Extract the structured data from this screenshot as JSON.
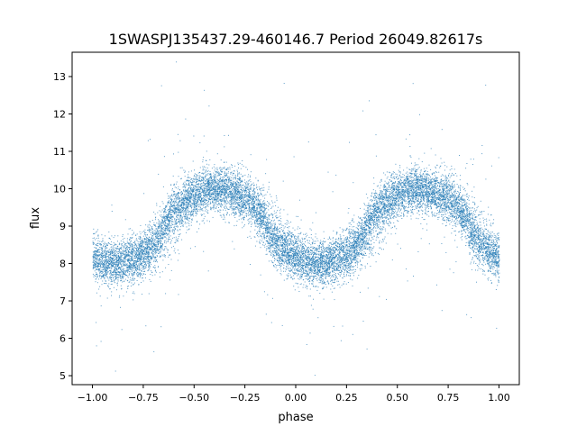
{
  "chart_data": {
    "type": "scatter",
    "title": "1SWASPJ135437.29-460146.7 Period 26049.82617s",
    "xlabel": "phase",
    "ylabel": "flux",
    "xlim": [
      -1.1,
      1.1
    ],
    "ylim": [
      4.76,
      13.65
    ],
    "xticks": [
      -1.0,
      -0.75,
      -0.5,
      -0.25,
      0.0,
      0.25,
      0.5,
      0.75,
      1.0
    ],
    "xtick_labels": [
      "−1.00",
      "−0.75",
      "−0.50",
      "−0.25",
      "0.00",
      "0.25",
      "0.50",
      "0.75",
      "1.00"
    ],
    "yticks": [
      5,
      6,
      7,
      8,
      9,
      10,
      11,
      12,
      13
    ],
    "ytick_labels": [
      "5",
      "6",
      "7",
      "8",
      "9",
      "10",
      "11",
      "12",
      "13"
    ],
    "grid": false,
    "color": "#1f77b4",
    "series_model": {
      "description": "phase-folded light curve, dense point cloud",
      "n_points": 14000,
      "flux_min": 8.0,
      "flux_max": 10.0,
      "phase_of_min": 0.1,
      "phase_of_max": 0.6,
      "scatter_sd": 0.3,
      "outlier_fraction": 0.02
    }
  }
}
